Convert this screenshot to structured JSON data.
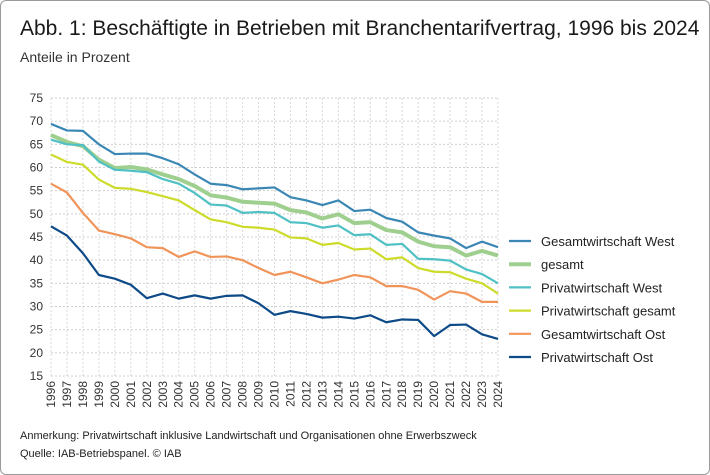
{
  "chart_data": {
    "type": "line",
    "title": "Abb. 1: Beschäftigte in Betrieben mit Branchentarifvertrag, 1996 bis 2024",
    "subtitle": "Anteile in Prozent",
    "xlabel": "",
    "ylabel": "",
    "ylim": [
      15,
      75
    ],
    "yticks": [
      15,
      20,
      25,
      30,
      35,
      40,
      45,
      50,
      55,
      60,
      65,
      70,
      75
    ],
    "grid": true,
    "legend": "right",
    "x": [
      "1996",
      "1997",
      "1998",
      "1999",
      "2000",
      "2001",
      "2002",
      "2003",
      "2004",
      "2005",
      "2006",
      "2007",
      "2008",
      "2009",
      "2010",
      "2011",
      "2012",
      "2013",
      "2014",
      "2015",
      "2016",
      "2017",
      "2018",
      "2019",
      "2020",
      "2021",
      "2022",
      "2023",
      "2024"
    ],
    "series": [
      {
        "name": "Gesamtwirtschaft West",
        "color": "#3a87b5",
        "values": [
          69.4,
          68,
          67.9,
          65,
          62.9,
          63,
          63,
          62,
          60.7,
          58.5,
          56.5,
          56.2,
          55.3,
          55.5,
          55.7,
          53.6,
          52.9,
          51.9,
          52.9,
          50.6,
          50.9,
          49.1,
          48.3,
          46,
          45.3,
          44.7,
          42.6,
          44,
          42.8
        ]
      },
      {
        "name": "gesamt",
        "color": "#9fcf8f",
        "values": [
          67,
          65.5,
          64.6,
          61.7,
          59.9,
          60.1,
          59.6,
          58.5,
          57.5,
          56,
          54,
          53.5,
          52.6,
          52.4,
          52.2,
          50.8,
          50.3,
          49,
          49.9,
          48,
          48.2,
          46.5,
          46,
          44,
          43,
          42.8,
          41,
          42,
          41
        ]
      },
      {
        "name": "Privatwirtschaft West",
        "color": "#4fc0c4",
        "values": [
          66,
          65,
          64.8,
          61.3,
          59.5,
          59.3,
          59,
          57.5,
          56.5,
          54.5,
          52,
          51.8,
          50.2,
          50.4,
          50.2,
          48.2,
          48,
          47,
          47.5,
          45.4,
          45.6,
          43.3,
          43.5,
          40.3,
          40.2,
          39.9,
          38,
          37,
          35
        ]
      },
      {
        "name": "Privatwirtschaft gesamt",
        "color": "#cddb2a",
        "values": [
          62.8,
          61.2,
          60.6,
          57.4,
          55.6,
          55.4,
          54.7,
          53.8,
          52.9,
          50.8,
          48.8,
          48.2,
          47.2,
          47,
          46.6,
          44.9,
          44.7,
          43.3,
          43.7,
          42.3,
          42.5,
          40.2,
          40.6,
          38.3,
          37.5,
          37.4,
          36,
          35,
          32.8
        ]
      },
      {
        "name": "Gesamtwirtschaft Ost",
        "color": "#f0945a",
        "values": [
          56.5,
          54.6,
          50.2,
          46.4,
          45.6,
          44.7,
          42.8,
          42.6,
          40.7,
          41.9,
          40.7,
          40.8,
          40,
          38.3,
          36.8,
          37.5,
          36.3,
          35,
          35.8,
          36.8,
          36.3,
          34.4,
          34.4,
          33.6,
          31.5,
          33.3,
          32.8,
          31,
          31
        ]
      },
      {
        "name": "Privatwirtschaft Ost",
        "color": "#0d4a87",
        "values": [
          47.3,
          45.3,
          41.5,
          36.8,
          36,
          34.7,
          31.8,
          32.8,
          31.7,
          32.4,
          31.7,
          32.3,
          32.4,
          30.7,
          28.2,
          29,
          28.4,
          27.6,
          27.8,
          27.4,
          28.1,
          26.6,
          27.2,
          27.1,
          23.6,
          26,
          26.1,
          24,
          23
        ]
      }
    ]
  },
  "notes": {
    "annotation": "Anmerkung: Privatwirtschaft inklusive Landwirtschaft und Organisationen ohne Erwerbszweck",
    "source": "Quelle: IAB-Betriebspanel. © IAB"
  }
}
